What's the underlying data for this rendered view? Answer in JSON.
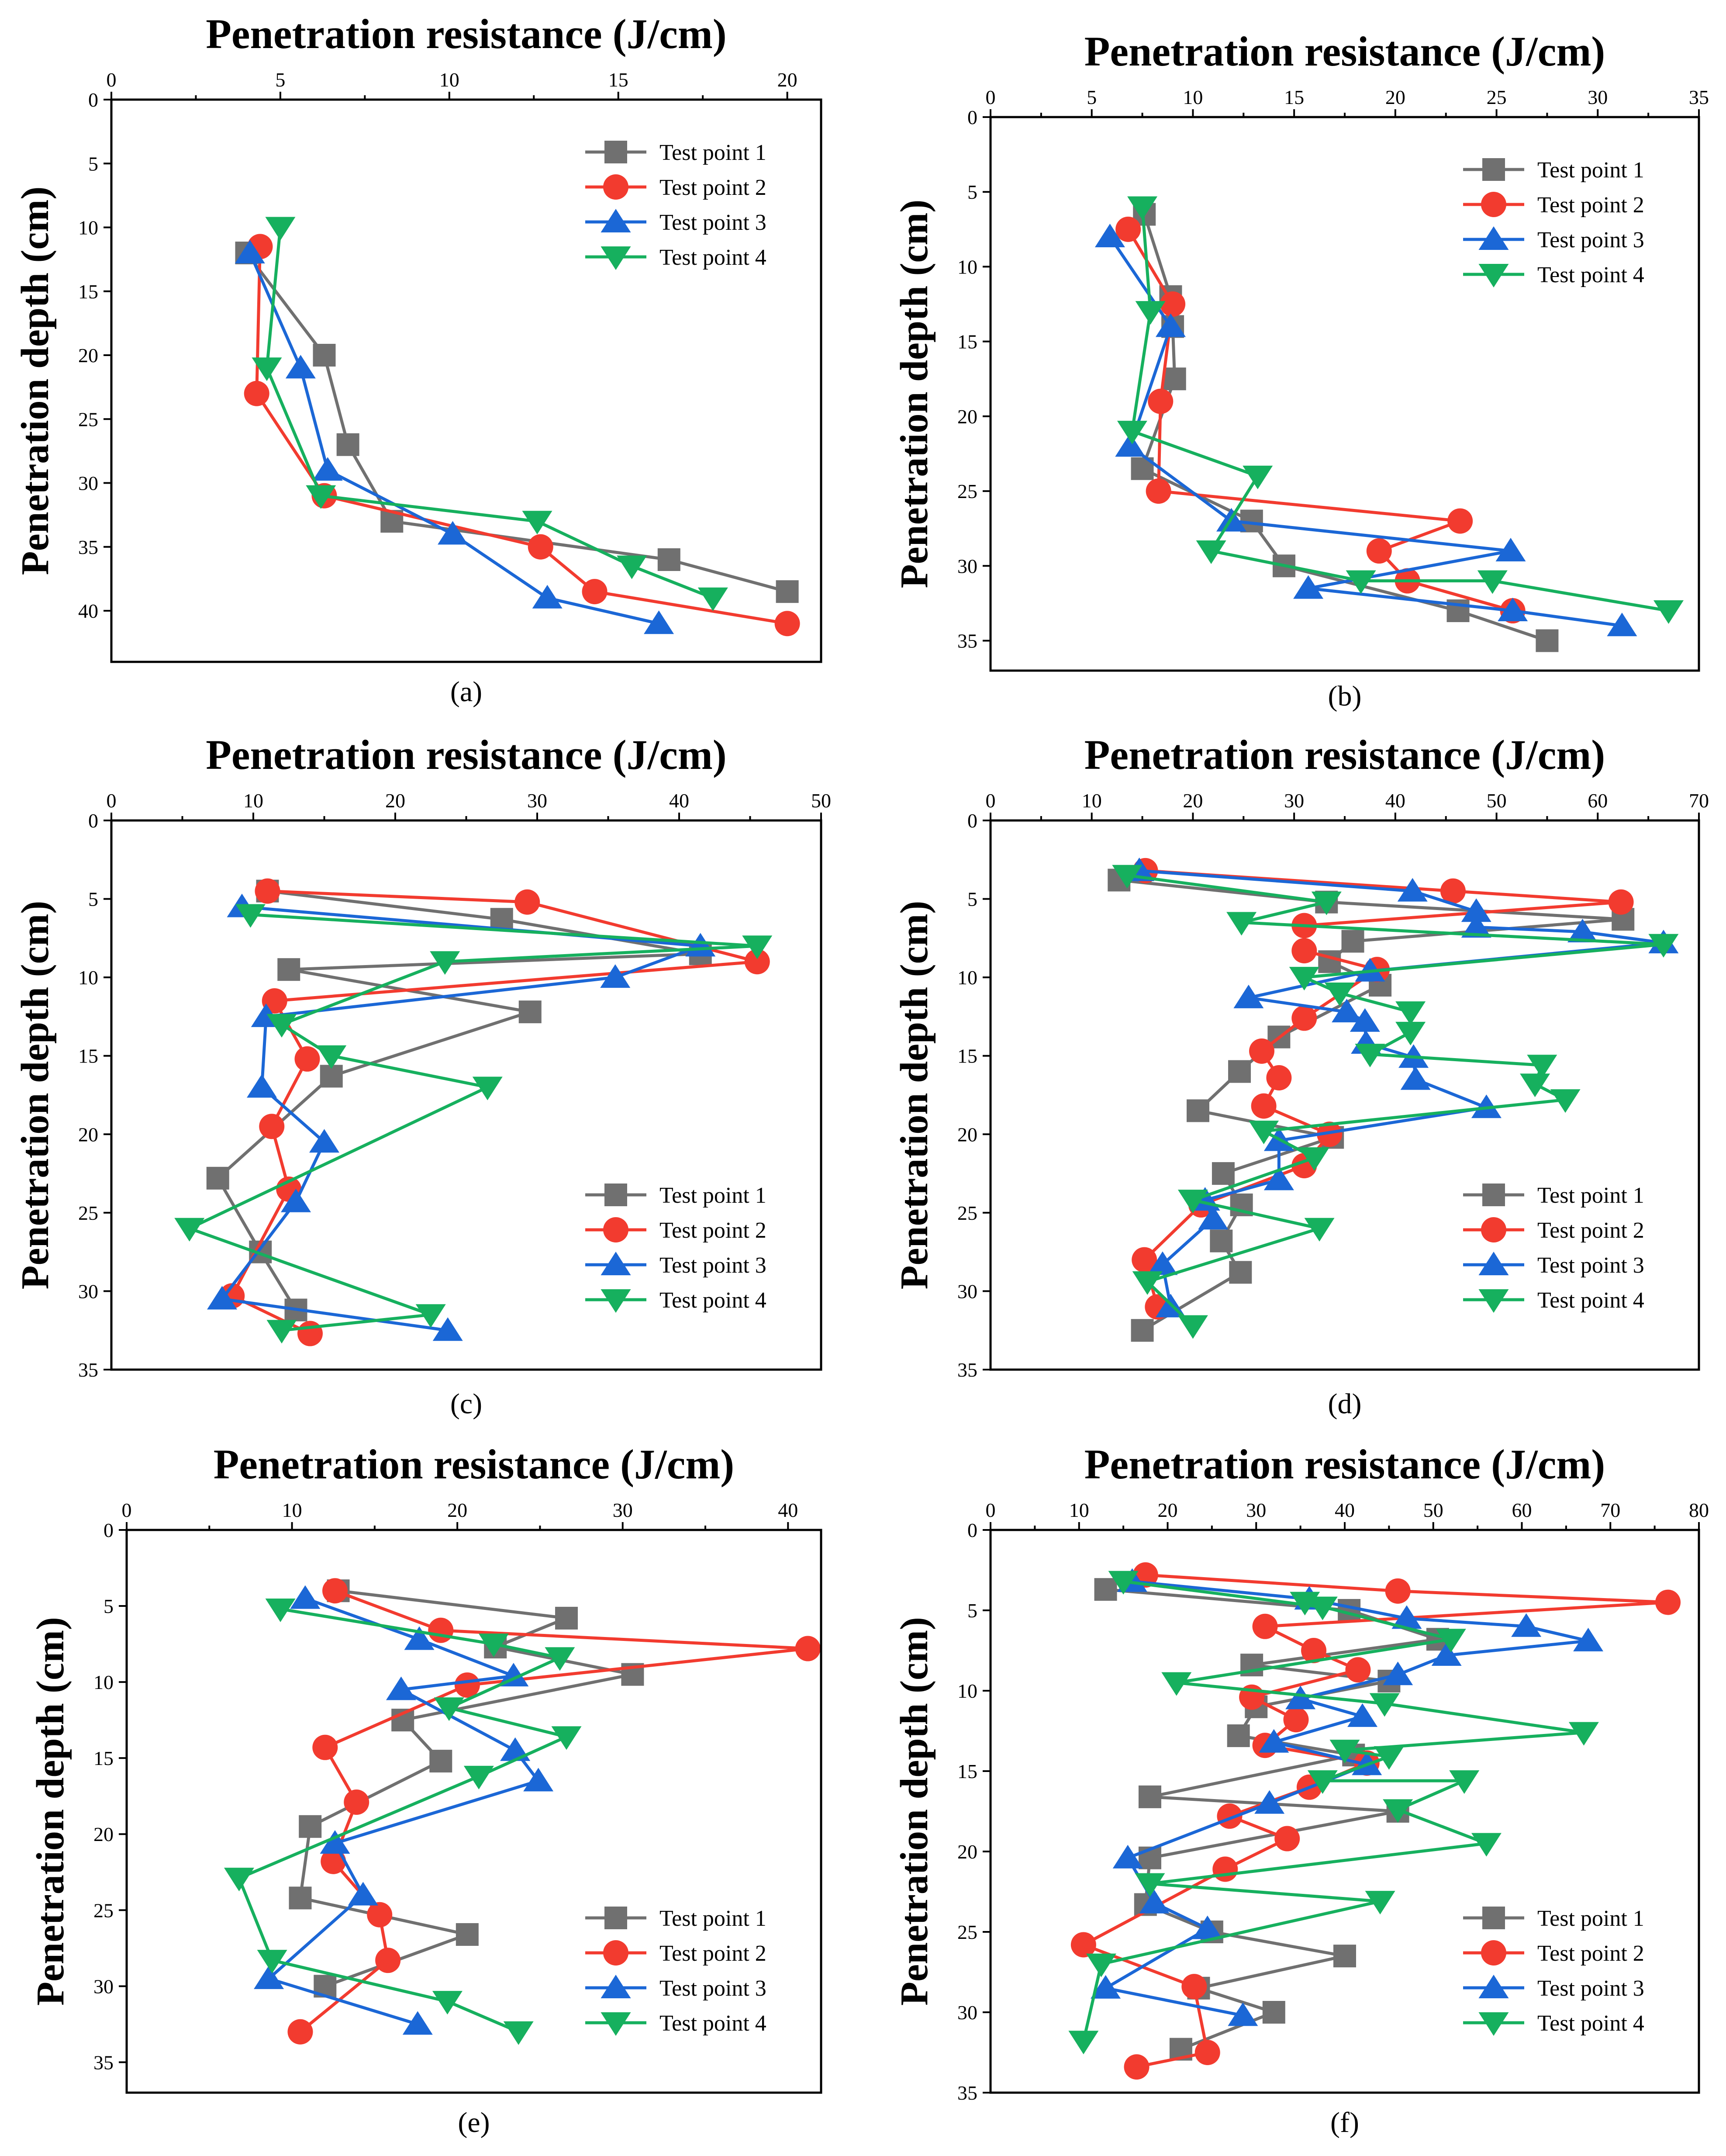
{
  "colors": {
    "Test point 1": "#707070",
    "Test point 2": "#f23b2f",
    "Test point 3": "#1b67d6",
    "Test point 4": "#16b05e"
  },
  "markers": {
    "Test point 1": "square",
    "Test point 2": "circle",
    "Test point 3": "triangle-up",
    "Test point 4": "triangle-down"
  },
  "chart_data": [
    {
      "panel": "(a)",
      "type": "line",
      "title": "Penetration resistance (J/cm)",
      "xlabel": "Penetration resistance (J/cm)",
      "ylabel": "Penetration depth (cm)",
      "xlim": [
        0,
        21
      ],
      "ylim": [
        0,
        44
      ],
      "x_ticks": [
        0,
        5,
        10,
        15,
        20
      ],
      "y_ticks": [
        0,
        5,
        10,
        15,
        20,
        25,
        30,
        35,
        40
      ],
      "legend_position": "top-right",
      "series": [
        {
          "name": "Test point 1",
          "x": [
            4.0,
            6.3,
            7.0,
            8.3,
            16.5,
            20.0
          ],
          "y": [
            12,
            20,
            27,
            33,
            36,
            38.5
          ]
        },
        {
          "name": "Test point 2",
          "x": [
            4.4,
            4.3,
            6.3,
            12.7,
            14.3,
            20.0
          ],
          "y": [
            11.5,
            23,
            31,
            35,
            38.5,
            41
          ]
        },
        {
          "name": "Test point 3",
          "x": [
            4.1,
            5.6,
            6.4,
            10.1,
            12.9,
            16.2
          ],
          "y": [
            12,
            21,
            29,
            34,
            39,
            41
          ]
        },
        {
          "name": "Test point 4",
          "x": [
            5.0,
            4.6,
            6.2,
            12.6,
            15.4,
            17.8
          ],
          "y": [
            10,
            21,
            31,
            33,
            36.5,
            39
          ]
        }
      ]
    },
    {
      "panel": "(b)",
      "type": "line",
      "title": "Penetration resistance (J/cm)",
      "xlabel": "Penetration resistance (J/cm)",
      "ylabel": "Penetration depth (cm)",
      "xlim": [
        0,
        35
      ],
      "ylim": [
        0,
        37
      ],
      "x_ticks": [
        0,
        5,
        10,
        15,
        20,
        25,
        30,
        35
      ],
      "y_ticks": [
        0,
        5,
        10,
        15,
        20,
        25,
        30,
        35
      ],
      "legend_position": "top-right",
      "series": [
        {
          "name": "Test point 1",
          "x": [
            7.6,
            8.9,
            9.0,
            9.1,
            7.5,
            12.9,
            14.5,
            23.1,
            27.5
          ],
          "y": [
            6.5,
            12,
            14,
            17.5,
            23.5,
            27,
            30,
            33,
            35
          ]
        },
        {
          "name": "Test point 2",
          "x": [
            6.8,
            9.0,
            8.4,
            8.3,
            23.2,
            19.2,
            20.6,
            25.8
          ],
          "y": [
            7.5,
            12.5,
            19,
            25,
            27,
            29,
            31,
            33
          ]
        },
        {
          "name": "Test point 3",
          "x": [
            5.9,
            8.9,
            6.9,
            11.9,
            25.7,
            15.7,
            25.8,
            31.2
          ],
          "y": [
            8,
            14,
            22,
            27,
            29,
            31.5,
            33,
            34
          ]
        },
        {
          "name": "Test point 4",
          "x": [
            7.5,
            7.9,
            7.0,
            13.2,
            10.9,
            18.3,
            24.8,
            33.5
          ],
          "y": [
            6,
            13,
            21,
            24,
            29,
            31,
            31,
            33
          ]
        }
      ]
    },
    {
      "panel": "(c)",
      "type": "line",
      "title": "Penetration resistance (J/cm)",
      "xlabel": "Penetration resistance (J/cm)",
      "ylabel": "Penetration depth (cm)",
      "xlim": [
        0,
        50
      ],
      "ylim": [
        0,
        35
      ],
      "x_ticks": [
        0,
        10,
        20,
        30,
        40,
        50
      ],
      "y_ticks": [
        0,
        5,
        10,
        15,
        20,
        25,
        30,
        35
      ],
      "legend_position": "bottom-right",
      "series": [
        {
          "name": "Test point 1",
          "x": [
            11.0,
            27.5,
            41.5,
            12.5,
            29.5,
            15.5,
            7.5,
            10.5,
            13.0
          ],
          "y": [
            4.5,
            6.3,
            8.5,
            9.5,
            12.2,
            16.3,
            22.8,
            27.5,
            31.2
          ]
        },
        {
          "name": "Test point 2",
          "x": [
            11.0,
            29.3,
            45.5,
            11.5,
            13.8,
            11.3,
            12.5,
            8.5,
            14.0
          ],
          "y": [
            4.5,
            5.2,
            9,
            11.5,
            15.2,
            19.5,
            23.5,
            30.3,
            32.7
          ]
        },
        {
          "name": "Test point 3",
          "x": [
            9.2,
            41.5,
            35.5,
            10.9,
            10.6,
            15.0,
            13.0,
            7.8,
            23.7
          ],
          "y": [
            5.5,
            8,
            10,
            12.5,
            17,
            20.5,
            24.3,
            30.5,
            32.5
          ]
        },
        {
          "name": "Test point 4",
          "x": [
            9.8,
            45.5,
            23.5,
            12.0,
            15.5,
            26.5,
            5.5,
            22.5,
            12.0
          ],
          "y": [
            6,
            8,
            9,
            13,
            15,
            17,
            26,
            31.5,
            32.5
          ]
        }
      ]
    },
    {
      "panel": "(d)",
      "type": "line",
      "title": "Penetration resistance (J/cm)",
      "xlabel": "Penetration resistance (J/cm)",
      "ylabel": "Penetration depth (cm)",
      "xlim": [
        0,
        70
      ],
      "ylim": [
        0,
        35
      ],
      "x_ticks": [
        0,
        10,
        20,
        30,
        40,
        50,
        60,
        70
      ],
      "y_ticks": [
        0,
        5,
        10,
        15,
        20,
        25,
        30,
        35
      ],
      "legend_position": "bottom-right",
      "series": [
        {
          "name": "Test point 1",
          "x": [
            12.7,
            33.2,
            62.5,
            35.8,
            33.5,
            38.5,
            28.5,
            24.6,
            20.5,
            33.8,
            23.0,
            24.8,
            22.8,
            24.7,
            15.0
          ],
          "y": [
            3.8,
            5.2,
            6.3,
            7.7,
            9,
            10.5,
            13.8,
            16,
            18.5,
            20.2,
            22.5,
            24.5,
            26.8,
            28.8,
            32.5
          ]
        },
        {
          "name": "Test point 2",
          "x": [
            15.3,
            45.7,
            62.3,
            31.0,
            31.0,
            38.2,
            31.0,
            26.8,
            28.5,
            27.0,
            33.5,
            31.0,
            20.8,
            15.2,
            16.5
          ],
          "y": [
            3.2,
            4.5,
            5.2,
            6.7,
            8.3,
            9.5,
            12.6,
            14.7,
            16.4,
            18.2,
            20,
            22,
            24.5,
            28,
            31
          ]
        },
        {
          "name": "Test point 3",
          "x": [
            14.7,
            41.7,
            48.0,
            48.0,
            58.5,
            66.5,
            37.5,
            25.5,
            35.2,
            37.0,
            37.1,
            41.8,
            42.0,
            49.0,
            28.5,
            28.5,
            21.2,
            22.0,
            17.0,
            17.8
          ],
          "y": [
            3.2,
            4.5,
            5.8,
            6.8,
            7.1,
            7.8,
            9.6,
            11.3,
            12.2,
            12.8,
            14.2,
            15.1,
            16.5,
            18.3,
            20.4,
            22.9,
            24.2,
            25.4,
            28.3,
            31
          ]
        },
        {
          "name": "Test point 4",
          "x": [
            13.5,
            33.2,
            24.8,
            66.5,
            31.0,
            34.5,
            41.5,
            41.5,
            37.5,
            54.5,
            53.8,
            56.8,
            27.0,
            32.0,
            20.0,
            32.5,
            15.5,
            20.0
          ],
          "y": [
            3.5,
            5.2,
            6.5,
            7.9,
            10,
            11,
            12.2,
            13.5,
            14.9,
            15.6,
            16.8,
            17.8,
            19.8,
            21.5,
            24.2,
            26,
            29.4,
            32.2
          ]
        }
      ]
    },
    {
      "panel": "(e)",
      "type": "line",
      "title": "Penetration resistance (J/cm)",
      "xlabel": "Penetration resistance (J/cm)",
      "ylabel": "Penetration depth (cm)",
      "xlim": [
        0,
        42
      ],
      "ylim": [
        0,
        37
      ],
      "x_ticks": [
        0,
        10,
        20,
        30,
        40
      ],
      "y_ticks": [
        0,
        5,
        10,
        15,
        20,
        25,
        30,
        35
      ],
      "legend_position": "bottom-right",
      "series": [
        {
          "name": "Test point 1",
          "x": [
            12.8,
            26.6,
            22.3,
            30.6,
            16.7,
            19.0,
            11.1,
            10.5,
            20.6,
            12.0
          ],
          "y": [
            4,
            5.8,
            7.7,
            9.5,
            12.5,
            15.2,
            19.5,
            24.2,
            26.6,
            30
          ]
        },
        {
          "name": "Test point 2",
          "x": [
            12.6,
            19.0,
            41.2,
            20.6,
            12.0,
            13.9,
            12.5,
            15.3,
            15.8,
            10.5
          ],
          "y": [
            4,
            6.6,
            7.8,
            10.2,
            14.3,
            17.9,
            21.8,
            25.3,
            28.3,
            33
          ]
        },
        {
          "name": "Test point 3",
          "x": [
            10.8,
            17.7,
            23.4,
            16.6,
            23.5,
            24.9,
            12.6,
            14.3,
            8.6,
            17.6
          ],
          "y": [
            4.5,
            7.2,
            9.6,
            10.5,
            14.5,
            16.5,
            20.6,
            24,
            29.5,
            32.5
          ]
        },
        {
          "name": "Test point 4",
          "x": [
            9.3,
            22.2,
            26.2,
            19.5,
            26.6,
            21.3,
            6.8,
            8.8,
            19.4,
            23.7
          ],
          "y": [
            5.2,
            7.5,
            8.4,
            11.7,
            13.6,
            16.2,
            22.9,
            28.3,
            31,
            33
          ]
        }
      ]
    },
    {
      "panel": "(f)",
      "type": "line",
      "title": "Penetration resistance (J/cm)",
      "xlabel": "Penetration resistance (J/cm)",
      "ylabel": "Penetration depth (cm)",
      "xlim": [
        0,
        80
      ],
      "ylim": [
        0,
        35
      ],
      "x_ticks": [
        0,
        10,
        20,
        30,
        40,
        50,
        60,
        70,
        80
      ],
      "y_ticks": [
        0,
        5,
        10,
        15,
        20,
        25,
        30,
        35
      ],
      "legend_position": "bottom-right",
      "series": [
        {
          "name": "Test point 1",
          "x": [
            13.0,
            40.5,
            50.5,
            29.5,
            45.0,
            30.0,
            28.0,
            41.0,
            18.0,
            46.0,
            18.0,
            17.5,
            25.0,
            40.0,
            23.5,
            32.0,
            21.5
          ],
          "y": [
            3.7,
            5,
            6.8,
            8.4,
            9.4,
            11,
            12.8,
            14,
            16.6,
            17.5,
            20.4,
            23.3,
            25,
            26.5,
            28.5,
            30,
            32.3
          ]
        },
        {
          "name": "Test point 2",
          "x": [
            17.5,
            46.0,
            76.5,
            31.0,
            36.5,
            41.5,
            29.5,
            34.5,
            31.0,
            42.5,
            36.0,
            27.0,
            33.5,
            26.5,
            10.5,
            23.0,
            24.5,
            16.5
          ],
          "y": [
            2.8,
            3.8,
            4.5,
            6,
            7.5,
            8.7,
            10.4,
            11.8,
            13.4,
            14.5,
            16,
            17.8,
            19.2,
            21.1,
            25.8,
            28.4,
            32.5,
            33.4
          ]
        },
        {
          "name": "Test point 3",
          "x": [
            16.0,
            36.0,
            47.0,
            60.5,
            67.5,
            51.5,
            46.0,
            35.0,
            42.0,
            32.0,
            42.5,
            31.5,
            15.5,
            18.5,
            24.5,
            13.0,
            28.5
          ],
          "y": [
            3.2,
            4.3,
            5.5,
            6,
            6.9,
            7.8,
            9,
            10.5,
            11.6,
            13.2,
            14.6,
            17,
            20.4,
            23.2,
            24.8,
            28.5,
            30.2
          ]
        },
        {
          "name": "Test point 4",
          "x": [
            15.0,
            37.5,
            35.5,
            52.0,
            21.0,
            44.5,
            67.0,
            40.0,
            45.0,
            37.5,
            53.5,
            46.0,
            56.0,
            18.0,
            44.0,
            12.5,
            10.5
          ],
          "y": [
            3.2,
            4.8,
            4.5,
            6.8,
            9.5,
            10.8,
            12.6,
            13.7,
            14.1,
            15.6,
            15.6,
            17.4,
            19.5,
            22,
            23.1,
            27,
            31.8
          ]
        }
      ]
    }
  ]
}
